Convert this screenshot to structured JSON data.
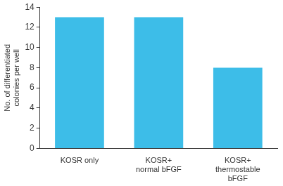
{
  "chart_data": {
    "type": "bar",
    "y_label": "No. of differentiated\ncolonies per well",
    "categories": [
      "KOSR only",
      "KOSR+\nnormal bFGF",
      "KOSR+\nthermostable\nbFGF"
    ],
    "values": [
      13,
      13,
      8
    ],
    "color": "#3dbde8",
    "ylim": [
      0,
      14
    ],
    "yticks": [
      0,
      2,
      4,
      6,
      8,
      10,
      12,
      14
    ],
    "grid": false
  }
}
